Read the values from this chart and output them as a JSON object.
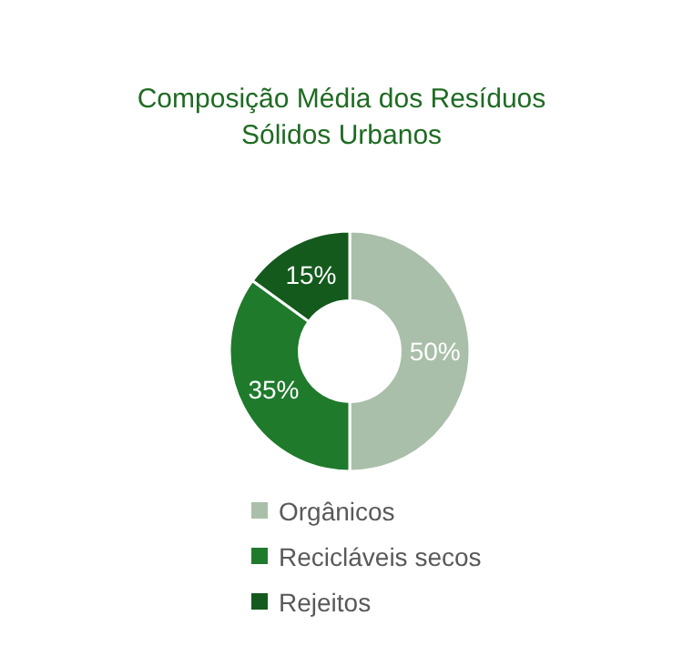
{
  "chart_data": {
    "type": "donut",
    "title": "Composição Média dos Resíduos Sólidos Urbanos",
    "categories": [
      "Orgânicos",
      "Recicláveis secos",
      "Rejeitos"
    ],
    "values": [
      50,
      35,
      15
    ],
    "colors": [
      "#a9bfa9",
      "#1f7a2c",
      "#145a1c"
    ],
    "value_labels": [
      "50%",
      "35%",
      "15%"
    ],
    "legend": "bottom"
  }
}
